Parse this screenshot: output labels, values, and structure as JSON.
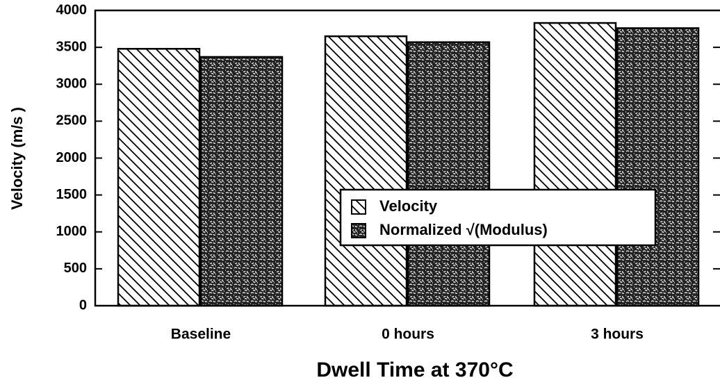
{
  "chart_data": {
    "type": "bar",
    "xlabel": "Dwell Time at 370°C",
    "ylabel": "Velocity (m/s )",
    "categories": [
      "Baseline",
      "0 hours",
      "3 hours"
    ],
    "series": [
      {
        "name": "Velocity",
        "color": "#000000",
        "values": [
          3480,
          3650,
          3830
        ]
      },
      {
        "name": "Normalized √(Modulus)",
        "color": "#000000",
        "values": [
          3370,
          3570,
          3760
        ]
      }
    ],
    "ylim": [
      0,
      4000
    ],
    "yticks": [
      0,
      500,
      1000,
      1500,
      2000,
      2500,
      3000,
      3500,
      4000
    ]
  }
}
